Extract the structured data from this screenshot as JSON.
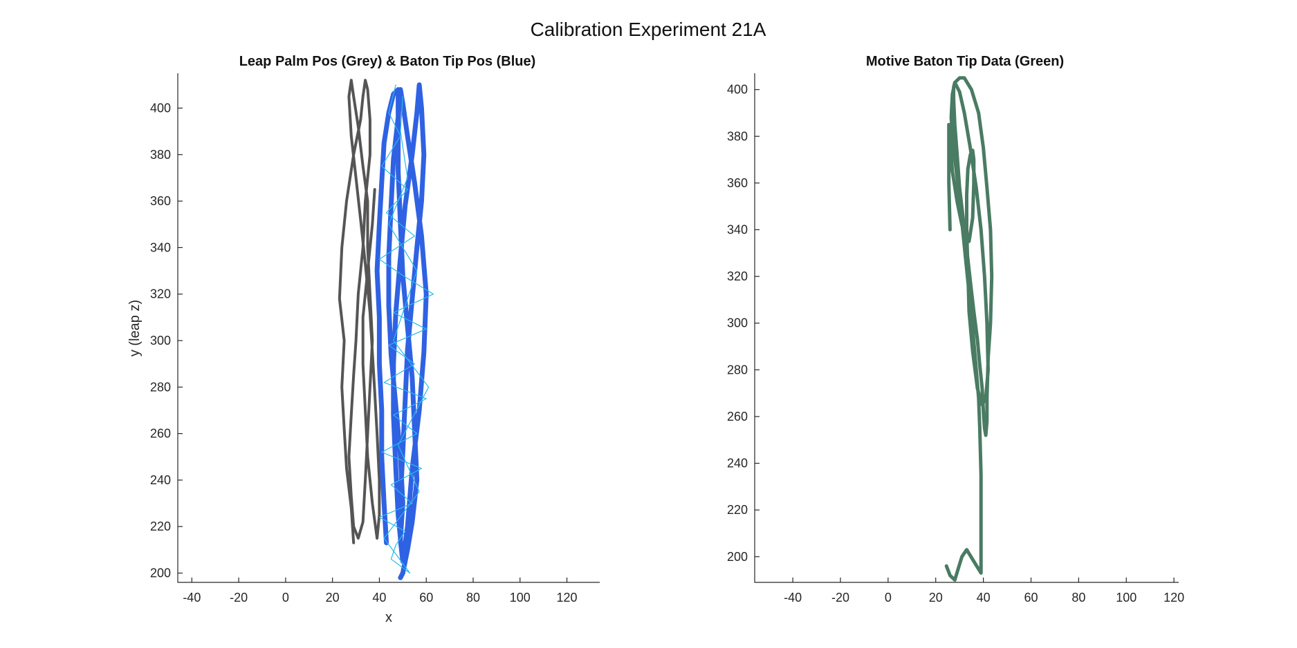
{
  "figure": {
    "title": "Calibration Experiment 21A"
  },
  "chart_data": [
    {
      "type": "line",
      "title": "Leap Palm Pos (Grey) & Baton Tip Pos (Blue)",
      "xlabel": "x",
      "ylabel": "y (leap z)",
      "xlim": [
        -46,
        134
      ],
      "ylim": [
        196,
        415
      ],
      "xticks": [
        -40,
        -20,
        0,
        20,
        40,
        60,
        80,
        100,
        120
      ],
      "yticks": [
        200,
        220,
        240,
        260,
        280,
        300,
        320,
        340,
        360,
        380,
        400
      ],
      "grid": false,
      "series": [
        {
          "color": "#555555",
          "width": 4,
          "x": [
            29,
            28,
            26,
            25,
            24,
            25,
            23,
            24,
            26,
            29,
            32,
            33,
            34,
            35,
            36,
            36,
            34,
            33,
            31,
            30,
            29,
            28,
            27,
            28,
            29,
            31,
            33,
            34,
            35,
            36,
            37,
            36,
            35,
            35,
            33,
            31,
            29,
            28,
            27,
            28,
            30,
            32,
            34,
            36,
            37,
            38,
            39,
            40,
            40,
            39,
            37,
            35,
            34,
            33,
            33,
            35,
            37,
            38
          ],
          "y": [
            213,
            228,
            245,
            262,
            280,
            300,
            318,
            340,
            360,
            380,
            395,
            405,
            412,
            408,
            395,
            380,
            360,
            340,
            320,
            300,
            285,
            268,
            250,
            233,
            220,
            215,
            222,
            240,
            260,
            280,
            300,
            320,
            340,
            360,
            375,
            392,
            405,
            412,
            405,
            388,
            370,
            352,
            333,
            312,
            295,
            278,
            260,
            240,
            225,
            215,
            230,
            250,
            270,
            290,
            310,
            330,
            350,
            365
          ]
        },
        {
          "color": "#2f62e3",
          "width": 7,
          "x": [
            43,
            42,
            41,
            41,
            40,
            40,
            39,
            40,
            41,
            42,
            44,
            46,
            48,
            48,
            46,
            45,
            44,
            44,
            45,
            47,
            49,
            50,
            49,
            48,
            47,
            46,
            46,
            47,
            49,
            51,
            54,
            56,
            57,
            58,
            59,
            58,
            56,
            54,
            52,
            51,
            50,
            49,
            49,
            50,
            52,
            54,
            57,
            59,
            60,
            58,
            55,
            52,
            50,
            49,
            48,
            48,
            49,
            50,
            52,
            54,
            55,
            56,
            54,
            52,
            50,
            49
          ],
          "y": [
            213,
            230,
            250,
            270,
            290,
            310,
            330,
            350,
            368,
            385,
            398,
            406,
            408,
            396,
            378,
            358,
            336,
            315,
            294,
            272,
            250,
            230,
            215,
            225,
            245,
            268,
            290,
            312,
            336,
            358,
            380,
            398,
            410,
            400,
            380,
            360,
            340,
            318,
            296,
            274,
            252,
            232,
            214,
            205,
            220,
            245,
            270,
            295,
            320,
            345,
            368,
            388,
            402,
            408,
            395,
            373,
            350,
            328,
            306,
            284,
            262,
            240,
            222,
            210,
            200,
            198
          ]
        },
        {
          "color": "#27b8ee",
          "width": 1.2,
          "x": [
            47,
            44,
            49,
            41,
            52,
            43,
            55,
            40,
            50,
            63,
            46,
            60,
            44,
            55,
            42,
            60,
            46,
            56,
            41,
            58,
            45,
            54,
            40,
            51,
            47,
            45,
            53,
            42,
            57,
            48,
            61,
            46,
            56,
            44,
            52,
            49,
            50
          ],
          "y": [
            410,
            398,
            388,
            375,
            365,
            355,
            345,
            335,
            328,
            320,
            312,
            305,
            298,
            290,
            282,
            275,
            268,
            260,
            252,
            245,
            238,
            230,
            224,
            218,
            212,
            206,
            200,
            215,
            235,
            255,
            280,
            300,
            330,
            350,
            370,
            390,
            405
          ]
        }
      ]
    },
    {
      "type": "line",
      "title": "Motive Baton Tip Data (Green)",
      "xlabel": "",
      "ylabel": "",
      "xlim": [
        -56,
        122
      ],
      "ylim": [
        189,
        407
      ],
      "xticks": [
        -40,
        -20,
        0,
        20,
        40,
        60,
        80,
        100,
        120
      ],
      "yticks": [
        200,
        220,
        240,
        260,
        280,
        300,
        320,
        340,
        360,
        380,
        400
      ],
      "grid": false,
      "series": [
        {
          "color": "#4a7b63",
          "width": 5,
          "x": [
            24.5,
            26,
            28,
            29.5,
            31,
            33,
            36,
            39,
            39,
            39,
            39,
            38.5,
            38,
            37,
            36,
            35,
            33.5,
            32,
            30.5,
            29,
            27.5,
            26.5,
            27,
            28,
            30,
            32,
            35,
            38,
            40,
            41.5,
            43,
            43.5,
            43,
            42,
            41.5,
            41.5,
            41,
            40.5,
            40,
            39.5,
            38.5,
            37.5,
            36,
            34.5,
            33,
            31.5,
            30,
            29,
            28,
            27.5,
            27.5,
            28,
            30,
            32,
            34.5,
            37,
            39,
            40.5,
            41.5,
            42,
            41,
            39.5,
            37.5,
            35.5,
            34,
            33.5,
            33,
            33,
            33.5,
            34.5,
            35.5,
            36,
            36,
            35.5,
            34,
            31,
            29,
            27,
            26,
            25.5,
            25.5,
            25.5,
            26
          ],
          "y": [
            196,
            192,
            190,
            195,
            200,
            203,
            198,
            193,
            200,
            215,
            235,
            255,
            268,
            280,
            292,
            305,
            318,
            333,
            348,
            362,
            375,
            388,
            398,
            403,
            405,
            405,
            400,
            390,
            375,
            358,
            340,
            320,
            300,
            285,
            268,
            258,
            252,
            255,
            262,
            272,
            282,
            293,
            305,
            318,
            332,
            345,
            358,
            372,
            385,
            396,
            401,
            403,
            399,
            390,
            375,
            358,
            340,
            320,
            300,
            280,
            268,
            265,
            272,
            288,
            305,
            323,
            340,
            355,
            366,
            372,
            374,
            370,
            360,
            345,
            335,
            342,
            352,
            365,
            378,
            385,
            378,
            360,
            340
          ]
        }
      ]
    }
  ]
}
